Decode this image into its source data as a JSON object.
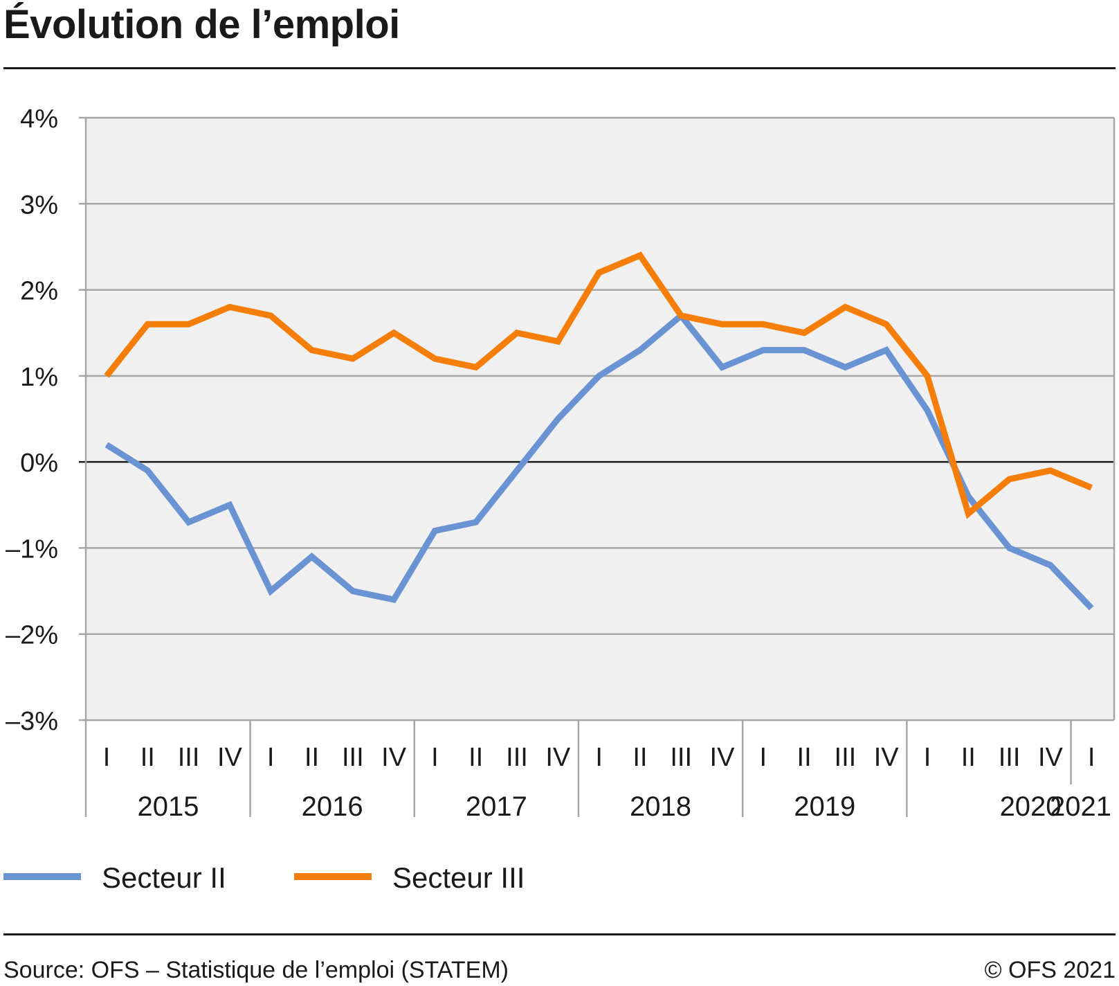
{
  "header": {
    "title": "Évolution de l’emploi"
  },
  "footer": {
    "source": "Source: OFS – Statistique de l’emploi (STATEM)",
    "copyright": "© OFS 2021"
  },
  "colors": {
    "secteur_ii": "#6a93d4",
    "secteur_iii": "#f57e0a",
    "plot_bg": "#f0f0f0",
    "grid": "#a6a6a6",
    "zero": "#1a1a1a"
  },
  "chart_data": {
    "type": "line",
    "title": "Évolution de l’emploi",
    "xlabel": "",
    "ylabel": "",
    "ylim": [
      -3,
      4
    ],
    "y_ticks": [
      "4%",
      "3%",
      "2%",
      "1%",
      "0%",
      "–1%",
      "–2%",
      "–3%"
    ],
    "y_tick_values": [
      4,
      3,
      2,
      1,
      0,
      -1,
      -2,
      -3
    ],
    "grid": true,
    "legend_position": "bottom-left",
    "quarters": [
      "I",
      "II",
      "III",
      "IV",
      "I",
      "II",
      "III",
      "IV",
      "I",
      "II",
      "III",
      "IV",
      "I",
      "II",
      "III",
      "IV",
      "I",
      "II",
      "III",
      "IV",
      "I",
      "II",
      "III",
      "IV",
      "I"
    ],
    "years": [
      {
        "label": "2015",
        "start": 0,
        "count": 4
      },
      {
        "label": "2016",
        "start": 4,
        "count": 4
      },
      {
        "label": "2017",
        "start": 8,
        "count": 4
      },
      {
        "label": "2018",
        "start": 12,
        "count": 4
      },
      {
        "label": "2019",
        "start": 16,
        "count": 4
      },
      {
        "label": "2020",
        "start": 20,
        "count": 4
      },
      {
        "label": "2021",
        "start": 24,
        "count": 1
      }
    ],
    "series": [
      {
        "name": "Secteur II",
        "color": "#6a93d4",
        "values": [
          0.2,
          -0.1,
          -0.7,
          -0.5,
          -1.5,
          -1.1,
          -1.5,
          -1.6,
          -0.8,
          -0.7,
          -0.1,
          0.5,
          1.0,
          1.3,
          1.7,
          1.1,
          1.3,
          1.3,
          1.1,
          1.3,
          0.6,
          -0.4,
          -1.0,
          -1.2,
          -1.7
        ]
      },
      {
        "name": "Secteur III",
        "color": "#f57e0a",
        "values": [
          1.0,
          1.6,
          1.6,
          1.8,
          1.7,
          1.3,
          1.2,
          1.5,
          1.2,
          1.1,
          1.5,
          1.4,
          2.2,
          2.4,
          1.7,
          1.6,
          1.6,
          1.5,
          1.8,
          1.6,
          1.0,
          -0.6,
          -0.2,
          -0.1,
          -0.3
        ]
      }
    ]
  }
}
